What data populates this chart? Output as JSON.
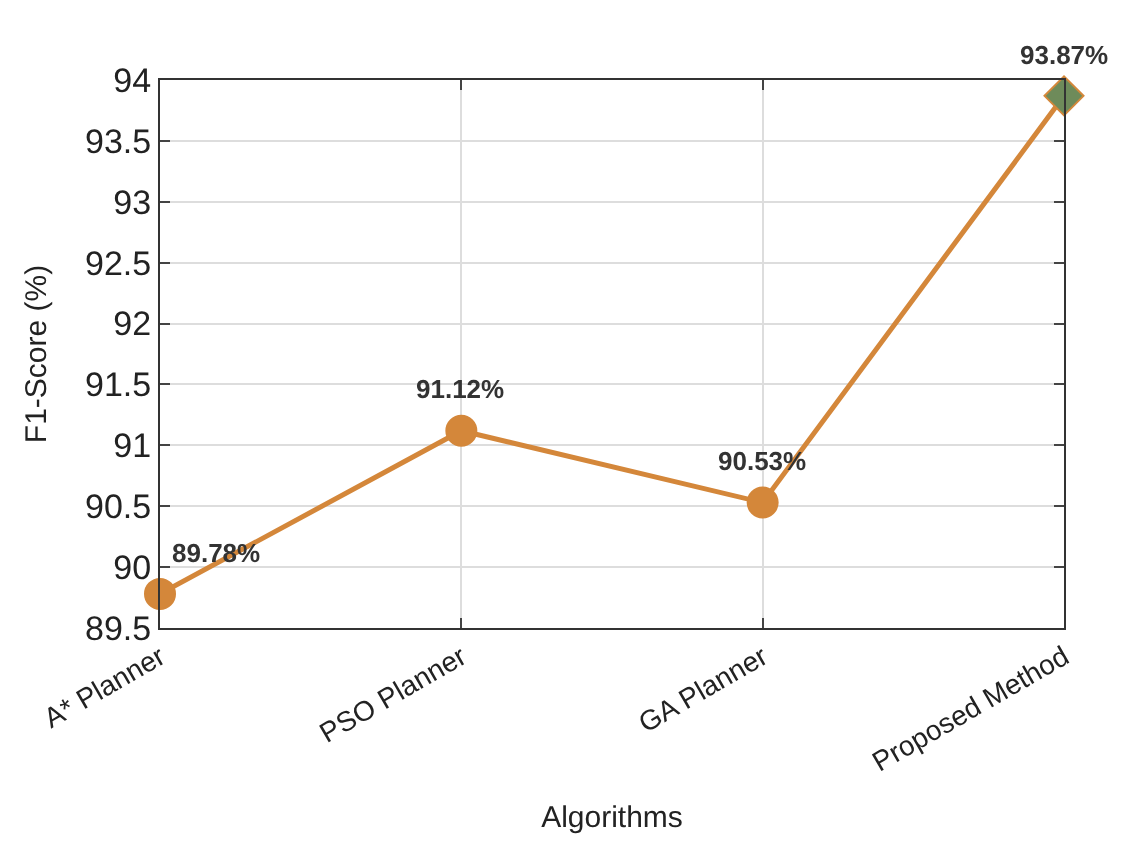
{
  "chart_data": {
    "type": "line",
    "xlabel": "Algorithms",
    "ylabel": "F1-Score (%)",
    "categories": [
      "A* Planner",
      "PSO Planner",
      "GA Planner",
      "Proposed Method"
    ],
    "series": [
      {
        "color": "#d4873a",
        "marker": "none",
        "values": [
          89.78,
          91.12,
          90.53,
          93.87
        ],
        "value_labels": [
          "89.78%",
          "91.12%",
          "90.53%",
          "93.87%"
        ]
      },
      {
        "type": "scatter",
        "color": "#d4873a",
        "marker": "circle",
        "values": [
          89.78,
          91.12,
          90.53,
          null
        ]
      },
      {
        "type": "scatter",
        "color": "#6e8b5a",
        "marker": "diamond",
        "values": [
          null,
          null,
          null,
          93.87
        ]
      }
    ],
    "ylim": [
      89.5,
      94
    ],
    "yticks": [
      89.5,
      90,
      90.5,
      91,
      91.5,
      92,
      92.5,
      93,
      93.5,
      94
    ],
    "grid": true,
    "legend": false
  }
}
